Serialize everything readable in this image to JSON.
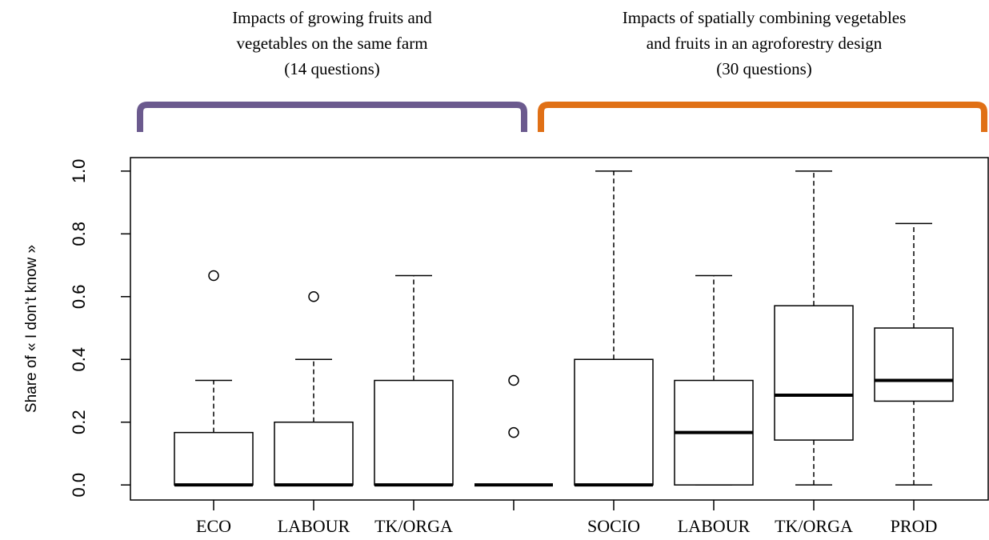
{
  "chart_data": {
    "type": "boxplot",
    "ylabel": "Share of « I don’t know »",
    "groups": [
      {
        "lines": [
          "Impacts of growing fruits and",
          "vegetables on the same farm",
          "(14 questions)"
        ],
        "color": "#6b5a8e"
      },
      {
        "lines": [
          "Impacts of spatially combining vegetables",
          "and fruits in an agroforestry design",
          "(30 questions)"
        ],
        "color": "#e07016"
      }
    ],
    "categories": [
      "ECO",
      "LABOUR",
      "TK/ORGA",
      null,
      "SOCIO",
      "LABOUR",
      "TK/ORGA",
      "PROD"
    ],
    "boxes": [
      {
        "min": 0,
        "q1": 0,
        "median": 0,
        "q3": 0.167,
        "max": 0.333,
        "outliers": [
          0.667
        ]
      },
      {
        "min": 0,
        "q1": 0,
        "median": 0,
        "q3": 0.2,
        "max": 0.4,
        "outliers": [
          0.6
        ]
      },
      {
        "min": 0,
        "q1": 0,
        "median": 0,
        "q3": 0.333,
        "max": 0.667,
        "outliers": []
      },
      {
        "min": 0,
        "q1": 0,
        "median": 0,
        "q3": 0,
        "max": 0,
        "outliers": [
          0.333,
          0.167
        ]
      },
      {
        "min": 0,
        "q1": 0,
        "median": 0,
        "q3": 0.4,
        "max": 1.0,
        "outliers": []
      },
      {
        "min": 0,
        "q1": 0,
        "median": 0.167,
        "q3": 0.333,
        "max": 0.667,
        "outliers": []
      },
      {
        "min": 0,
        "q1": 0.143,
        "median": 0.286,
        "q3": 0.571,
        "max": 1.0,
        "outliers": []
      },
      {
        "min": 0,
        "q1": 0.267,
        "median": 0.333,
        "q3": 0.5,
        "max": 0.833,
        "outliers": []
      }
    ],
    "ylim": [
      -0.048,
      1.043
    ],
    "yticks": [
      {
        "value": 0,
        "label": "0.0"
      },
      {
        "value": 0.2,
        "label": "0.2"
      },
      {
        "value": 0.4,
        "label": "0.4"
      },
      {
        "value": 0.6,
        "label": "0.6"
      },
      {
        "value": 0.8,
        "label": "0.8"
      },
      {
        "value": 1.0,
        "label": "1.0"
      }
    ]
  }
}
